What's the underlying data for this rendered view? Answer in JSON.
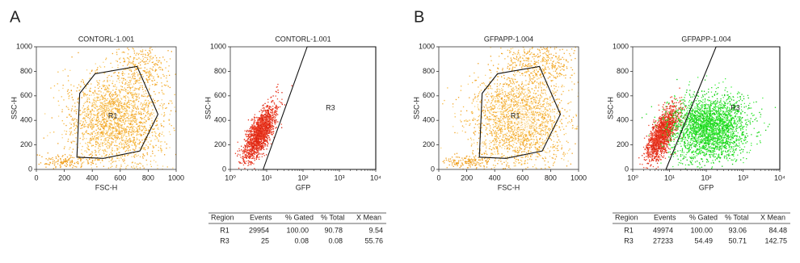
{
  "panels": [
    {
      "letter": "A",
      "table": {
        "headers": [
          "Region",
          "Events",
          "% Gated",
          "% Total",
          "X Mean"
        ],
        "rows": [
          [
            "R1",
            "29954",
            "100.00",
            "90.78",
            "9.54"
          ],
          [
            "R3",
            "25",
            "0.08",
            "0.08",
            "55.76"
          ]
        ]
      }
    },
    {
      "letter": "B",
      "table": {
        "headers": [
          "Region",
          "Events",
          "% Gated",
          "% Total",
          "X Mean"
        ],
        "rows": [
          [
            "R1",
            "49974",
            "100.00",
            "93.06",
            "84.48"
          ],
          [
            "R3",
            "27233",
            "54.49",
            "50.71",
            "142.75"
          ]
        ]
      }
    }
  ],
  "chart_data": [
    {
      "type": "scatter",
      "title": "CONTORL-1.001",
      "xlabel": "FSC-H",
      "ylabel": "SSC-H",
      "log_x": false,
      "xlim": [
        0,
        1000
      ],
      "ylim": [
        0,
        1000
      ],
      "xticks": [
        0,
        200,
        400,
        600,
        800,
        1000
      ],
      "yticks": [
        0,
        200,
        400,
        600,
        800,
        1000
      ],
      "gates": [
        {
          "label": "R1",
          "points": [
            [
              290,
              100
            ],
            [
              310,
              620
            ],
            [
              420,
              780
            ],
            [
              720,
              840
            ],
            [
              870,
              450
            ],
            [
              740,
              150
            ],
            [
              480,
              90
            ]
          ]
        }
      ]
    },
    {
      "type": "scatter",
      "title": "CONTORL-1.001",
      "xlabel": "GFP",
      "ylabel": "SSC-H",
      "log_x": true,
      "xlim": [
        1,
        10000
      ],
      "ylim": [
        0,
        1000
      ],
      "xticks": [
        {
          "value": 1,
          "label": "10⁰"
        },
        {
          "value": 10,
          "label": "10¹"
        },
        {
          "value": 100,
          "label": "10²"
        },
        {
          "value": 1000,
          "label": "10³"
        },
        {
          "value": 10000,
          "label": "10⁴"
        }
      ],
      "yticks": [
        0,
        200,
        400,
        600,
        800,
        1000
      ],
      "gates": [
        {
          "label": "R3",
          "points": [
            [
              8,
              0
            ],
            [
              130,
              1000
            ],
            [
              10000,
              1000
            ],
            [
              10000,
              0
            ]
          ]
        }
      ]
    },
    {
      "type": "scatter",
      "title": "GFPAPP-1.004",
      "xlabel": "FSC-H",
      "ylabel": "SSC-H",
      "log_x": false,
      "xlim": [
        0,
        1000
      ],
      "ylim": [
        0,
        1000
      ],
      "xticks": [
        0,
        200,
        400,
        600,
        800,
        1000
      ],
      "yticks": [
        0,
        200,
        400,
        600,
        800,
        1000
      ],
      "gates": [
        {
          "label": "R1",
          "points": [
            [
              290,
              100
            ],
            [
              310,
              620
            ],
            [
              420,
              780
            ],
            [
              720,
              840
            ],
            [
              870,
              450
            ],
            [
              740,
              150
            ],
            [
              480,
              90
            ]
          ]
        }
      ]
    },
    {
      "type": "scatter",
      "title": "GFPAPP-1.004",
      "xlabel": "GFP",
      "ylabel": "SSC-H",
      "log_x": true,
      "xlim": [
        1,
        10000
      ],
      "ylim": [
        0,
        1000
      ],
      "xticks": [
        {
          "value": 1,
          "label": "10⁰"
        },
        {
          "value": 10,
          "label": "10¹"
        },
        {
          "value": 100,
          "label": "10²"
        },
        {
          "value": 1000,
          "label": "10³"
        },
        {
          "value": 10000,
          "label": "10⁴"
        }
      ],
      "yticks": [
        0,
        200,
        400,
        600,
        800,
        1000
      ],
      "gates": [
        {
          "label": "R3",
          "points": [
            [
              8,
              0
            ],
            [
              185,
              1000
            ],
            [
              10000,
              1000
            ],
            [
              10000,
              0
            ]
          ]
        }
      ]
    }
  ]
}
